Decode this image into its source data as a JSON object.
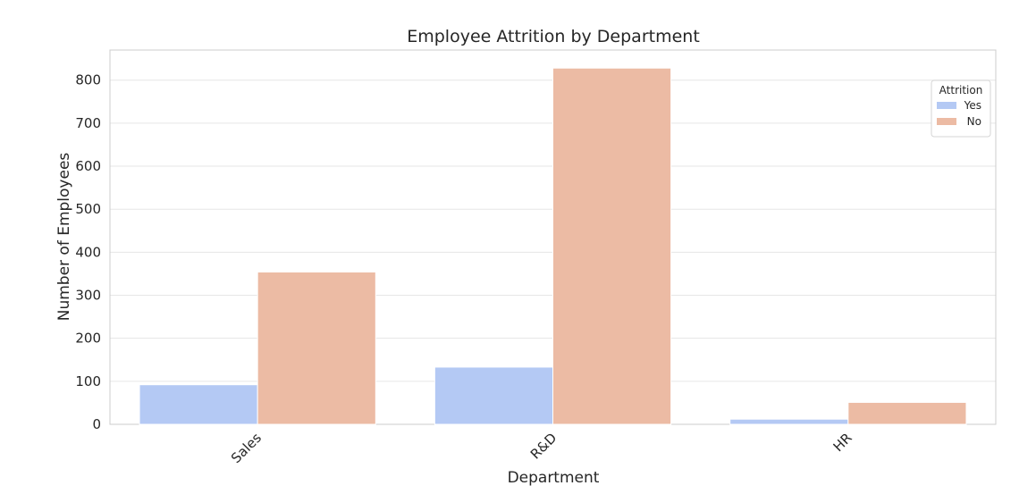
{
  "chart_data": {
    "type": "bar",
    "title": "Employee Attrition by Department",
    "xlabel": "Department",
    "ylabel": "Number of Employees",
    "categories": [
      "Sales",
      "R&D",
      "HR"
    ],
    "series": [
      {
        "name": "Yes",
        "values": [
          92,
          133,
          12
        ],
        "color": "#b4c9f4"
      },
      {
        "name": "No",
        "values": [
          354,
          828,
          51
        ],
        "color": "#ecbba4"
      }
    ],
    "ylim": [
      0,
      870
    ],
    "yticks": [
      0,
      100,
      200,
      300,
      400,
      500,
      600,
      700,
      800
    ],
    "grid": true,
    "legend": {
      "title": "Attrition",
      "placement": "top-right"
    }
  }
}
